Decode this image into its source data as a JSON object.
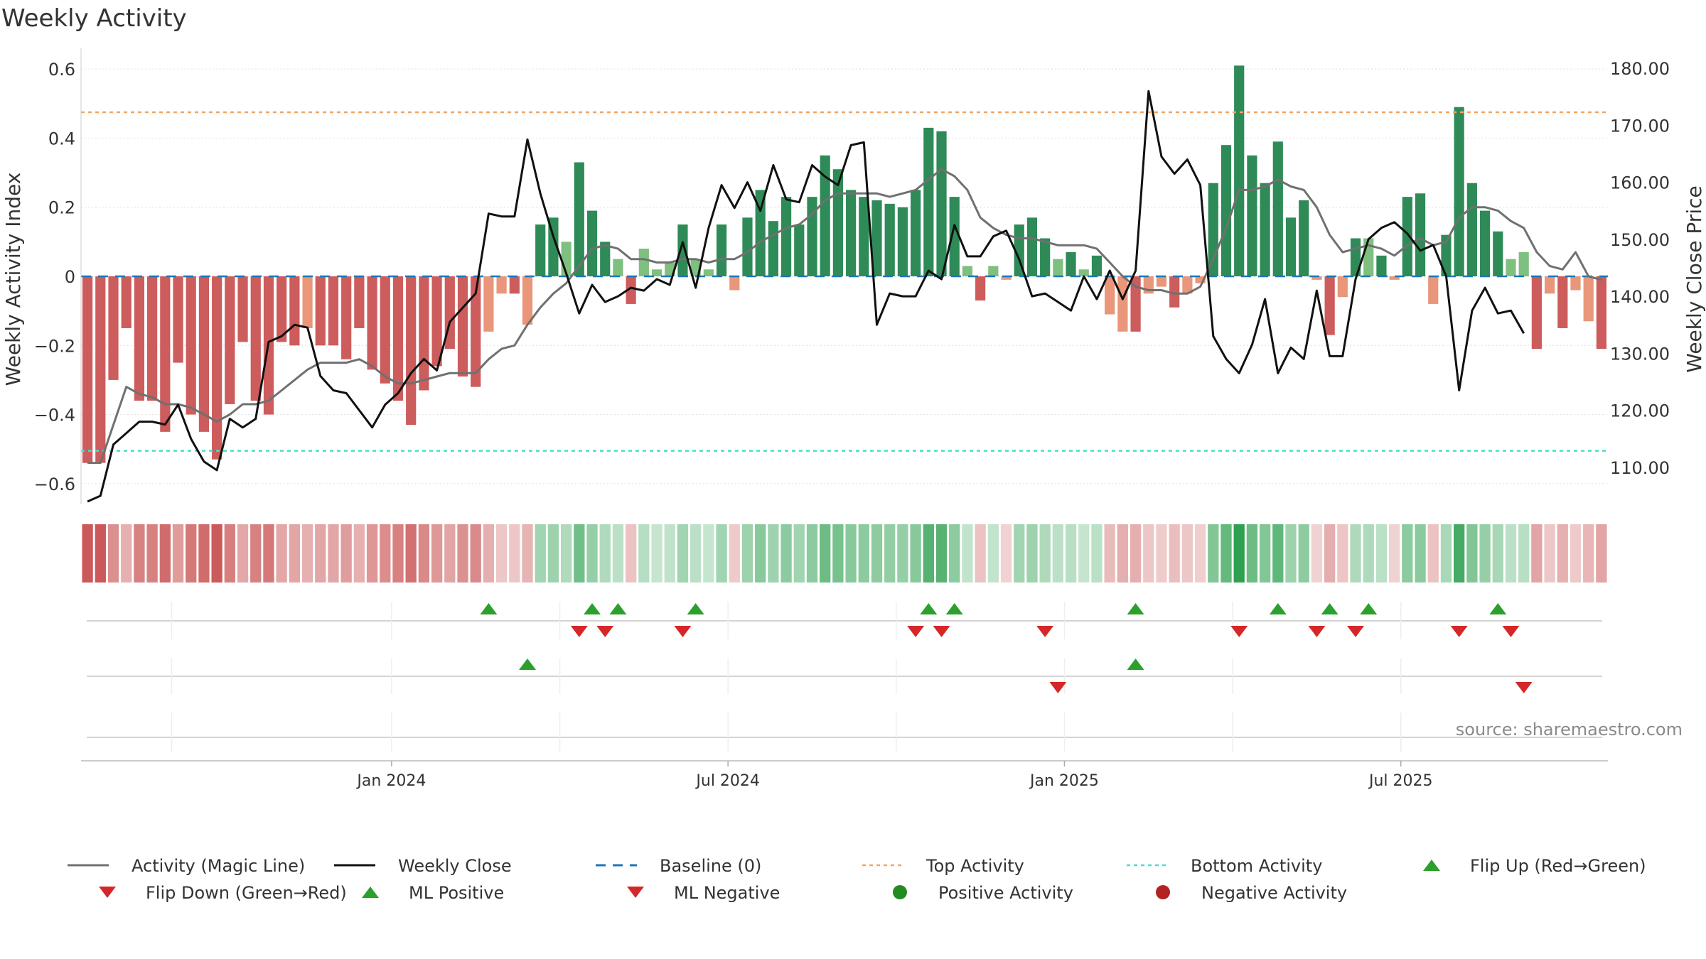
{
  "chart_data": {
    "type": "bar",
    "title": "Weekly Activity",
    "ylabel": "Weekly Activity Index",
    "ylabel_right": "Weekly Close Price",
    "source": "source: sharemaestro.com",
    "ylim": [
      -0.66,
      0.66
    ],
    "ylim_right": [
      103.5,
      183.5
    ],
    "yticks": [
      {
        "value": 0.6,
        "label": "0.6"
      },
      {
        "value": 0.4,
        "label": "0.4"
      },
      {
        "value": 0.2,
        "label": "0.2"
      },
      {
        "value": 0,
        "label": "0"
      },
      {
        "value": -0.2,
        "label": "−0.2"
      },
      {
        "value": -0.4,
        "label": "−0.4"
      },
      {
        "value": -0.6,
        "label": "−0.6"
      }
    ],
    "yticks_right": [
      {
        "value": 180,
        "label": "180.00"
      },
      {
        "value": 170,
        "label": "170.00"
      },
      {
        "value": 160,
        "label": "160.00"
      },
      {
        "value": 150,
        "label": "150.00"
      },
      {
        "value": 140,
        "label": "140.00"
      },
      {
        "value": 130,
        "label": "130.00"
      },
      {
        "value": 120,
        "label": "120.00"
      },
      {
        "value": 110,
        "label": "110.00"
      }
    ],
    "xticks": [
      {
        "index": 23.5,
        "label": "Jan 2024"
      },
      {
        "index": 49.5,
        "label": "Jul 2024"
      },
      {
        "index": 75.5,
        "label": "Jan 2025"
      },
      {
        "index": 101.5,
        "label": "Jul 2025"
      }
    ],
    "top_activity": 0.475,
    "bottom_activity": -0.505,
    "series_activity": [
      -0.54,
      -0.54,
      -0.3,
      -0.15,
      -0.36,
      -0.36,
      -0.45,
      -0.25,
      -0.4,
      -0.45,
      -0.53,
      -0.37,
      -0.19,
      -0.36,
      -0.4,
      -0.19,
      -0.2,
      -0.15,
      -0.2,
      -0.2,
      -0.24,
      -0.15,
      -0.27,
      -0.31,
      -0.36,
      -0.43,
      -0.33,
      -0.26,
      -0.21,
      -0.29,
      -0.32,
      -0.16,
      -0.05,
      -0.05,
      -0.14,
      0.15,
      0.17,
      0.1,
      0.33,
      0.19,
      0.1,
      0.05,
      -0.08,
      0.08,
      0.02,
      0.04,
      0.15,
      0.05,
      0.02,
      0.15,
      -0.04,
      0.17,
      0.25,
      0.16,
      0.23,
      0.15,
      0.23,
      0.35,
      0.31,
      0.25,
      0.23,
      0.22,
      0.21,
      0.2,
      0.25,
      0.43,
      0.42,
      0.23,
      0.03,
      -0.07,
      0.03,
      -0.01,
      0.15,
      0.17,
      0.11,
      0.05,
      0.07,
      0.02,
      0.06,
      -0.11,
      -0.16,
      -0.16,
      -0.05,
      -0.03,
      -0.09,
      -0.05,
      -0.02,
      0.27,
      0.38,
      0.61,
      0.35,
      0.27,
      0.39,
      0.17,
      0.22,
      -0.01,
      -0.17,
      -0.06,
      0.11,
      0.11,
      0.06,
      -0.01,
      0.23,
      0.24,
      -0.08,
      0.12,
      0.49,
      0.27,
      0.19,
      0.13,
      0.05,
      0.07,
      -0.21,
      -0.05,
      -0.15,
      -0.04,
      -0.13,
      -0.21
    ],
    "series_magic_line": [
      -0.54,
      -0.54,
      -0.43,
      -0.32,
      -0.34,
      -0.35,
      -0.37,
      -0.37,
      -0.38,
      -0.4,
      -0.42,
      -0.4,
      -0.37,
      -0.37,
      -0.36,
      -0.33,
      -0.3,
      -0.27,
      -0.25,
      -0.25,
      -0.25,
      -0.24,
      -0.26,
      -0.29,
      -0.31,
      -0.31,
      -0.3,
      -0.29,
      -0.28,
      -0.28,
      -0.28,
      -0.24,
      -0.21,
      -0.2,
      -0.14,
      -0.09,
      -0.05,
      -0.02,
      0.03,
      0.08,
      0.09,
      0.08,
      0.05,
      0.05,
      0.04,
      0.04,
      0.05,
      0.05,
      0.04,
      0.05,
      0.05,
      0.07,
      0.1,
      0.12,
      0.14,
      0.15,
      0.18,
      0.22,
      0.24,
      0.24,
      0.24,
      0.24,
      0.23,
      0.24,
      0.25,
      0.28,
      0.31,
      0.29,
      0.25,
      0.17,
      0.14,
      0.12,
      0.11,
      0.11,
      0.1,
      0.09,
      0.09,
      0.09,
      0.08,
      0.04,
      0.0,
      -0.03,
      -0.04,
      -0.04,
      -0.05,
      -0.05,
      -0.03,
      0.05,
      0.14,
      0.25,
      0.25,
      0.26,
      0.28,
      0.26,
      0.25,
      0.2,
      0.12,
      0.07,
      0.08,
      0.09,
      0.08,
      0.06,
      0.09,
      0.11,
      0.09,
      0.1,
      0.17,
      0.2,
      0.2,
      0.19,
      0.16,
      0.14,
      0.07,
      0.03,
      0.02,
      0.07,
      0.0,
      -0.01
    ],
    "series_close": [
      104.0,
      105.0,
      114.0,
      116.0,
      118.0,
      118.0,
      117.5,
      121.0,
      115.0,
      111.0,
      109.5,
      118.5,
      117.0,
      118.5,
      132.0,
      133.0,
      135.0,
      134.5,
      126.0,
      123.5,
      123.0,
      120.0,
      117.0,
      121.0,
      123.0,
      126.5,
      129.0,
      127.0,
      135.5,
      138.0,
      140.5,
      154.5,
      154.0,
      154.0,
      167.5,
      158.0,
      150.5,
      144.0,
      137.0,
      142.0,
      139.0,
      140.0,
      141.5,
      141.0,
      143.0,
      142.0,
      149.5,
      141.5,
      152.0,
      159.5,
      155.5,
      160.0,
      155.0,
      163.0,
      157.0,
      156.5,
      163.0,
      161.0,
      159.5,
      166.5,
      167.0,
      135.0,
      140.5,
      140.0,
      140.0,
      144.5,
      143.0,
      152.5,
      147.0,
      147.0,
      150.5,
      151.5,
      146.5,
      140.0,
      140.5,
      139.0,
      137.5,
      143.5,
      139.5,
      144.5,
      139.5,
      144.5,
      176.0,
      164.5,
      161.5,
      164.0,
      159.5,
      133.0,
      129.0,
      126.5,
      131.5,
      139.5,
      126.5,
      131.0,
      129.0,
      141.0,
      129.5,
      129.5,
      143.0,
      150.0,
      152.0,
      153.0,
      151.0,
      148.0,
      149.0,
      143.5,
      123.5,
      137.5,
      141.5,
      137.0,
      137.5,
      133.5
    ]
  },
  "heat_strip": {
    "values": [
      -0.54,
      -0.54,
      -0.3,
      -0.15,
      -0.36,
      -0.36,
      -0.45,
      -0.25,
      -0.4,
      -0.45,
      -0.53,
      -0.37,
      -0.19,
      -0.36,
      -0.4,
      -0.19,
      -0.2,
      -0.15,
      -0.2,
      -0.2,
      -0.24,
      -0.15,
      -0.27,
      -0.31,
      -0.36,
      -0.43,
      -0.33,
      -0.26,
      -0.21,
      -0.29,
      -0.32,
      -0.16,
      -0.05,
      -0.05,
      -0.14,
      0.15,
      0.17,
      0.1,
      0.33,
      0.19,
      0.1,
      0.05,
      -0.08,
      0.08,
      0.02,
      0.04,
      0.15,
      0.05,
      0.02,
      0.15,
      -0.04,
      0.17,
      0.25,
      0.16,
      0.23,
      0.15,
      0.23,
      0.35,
      0.31,
      0.25,
      0.23,
      0.22,
      0.21,
      0.2,
      0.25,
      0.43,
      0.42,
      0.23,
      0.03,
      -0.07,
      0.03,
      -0.01,
      0.15,
      0.17,
      0.11,
      0.05,
      0.07,
      0.02,
      0.06,
      -0.11,
      -0.16,
      -0.16,
      -0.05,
      -0.03,
      -0.09,
      -0.05,
      -0.02,
      0.27,
      0.38,
      0.61,
      0.35,
      0.27,
      0.39,
      0.17,
      0.22,
      -0.01,
      -0.17,
      -0.06,
      0.11,
      0.11,
      0.06,
      -0.01,
      0.23,
      0.24,
      -0.08,
      0.12,
      0.49,
      0.27,
      0.19,
      0.13,
      0.05,
      0.07,
      -0.21,
      -0.05,
      -0.15,
      -0.04,
      -0.13,
      -0.21
    ]
  },
  "signals": {
    "flip_up": [
      31,
      39,
      41,
      47,
      65,
      67,
      81,
      92,
      96,
      99,
      109
    ],
    "flip_down": [
      38,
      40,
      46,
      64,
      66,
      74,
      89,
      95,
      98,
      106,
      110
    ],
    "ml_positive": [
      34,
      81
    ],
    "ml_negative": [
      75,
      111
    ]
  },
  "colors": {
    "pos_strong": "#2e8b57",
    "pos_light": "#7fbf7f",
    "neg_strong": "#cd5c5c",
    "neg_light": "#e9967a",
    "magic_line": "#707070",
    "close_line": "#111111",
    "baseline": "#1f77b4",
    "top_line": "#f4a460",
    "bottom_line": "#40e0d0",
    "flip_up": "#2ca02c",
    "flip_down": "#d62728",
    "pos_dot": "#228b22",
    "neg_dot": "#b22222"
  },
  "legend": [
    {
      "key": "magic",
      "label": "Activity (Magic Line)"
    },
    {
      "key": "close",
      "label": "Weekly Close"
    },
    {
      "key": "baseline",
      "label": "Baseline (0)"
    },
    {
      "key": "top",
      "label": "Top Activity"
    },
    {
      "key": "bottom",
      "label": "Bottom Activity"
    },
    {
      "key": "flipup",
      "label": "Flip Up (Red→Green)"
    },
    {
      "key": "flipdown",
      "label": "Flip Down (Green→Red)"
    },
    {
      "key": "mlpos",
      "label": "ML Positive"
    },
    {
      "key": "mlneg",
      "label": "ML Negative"
    },
    {
      "key": "posact",
      "label": "Positive Activity"
    },
    {
      "key": "negact",
      "label": "Negative Activity"
    }
  ]
}
